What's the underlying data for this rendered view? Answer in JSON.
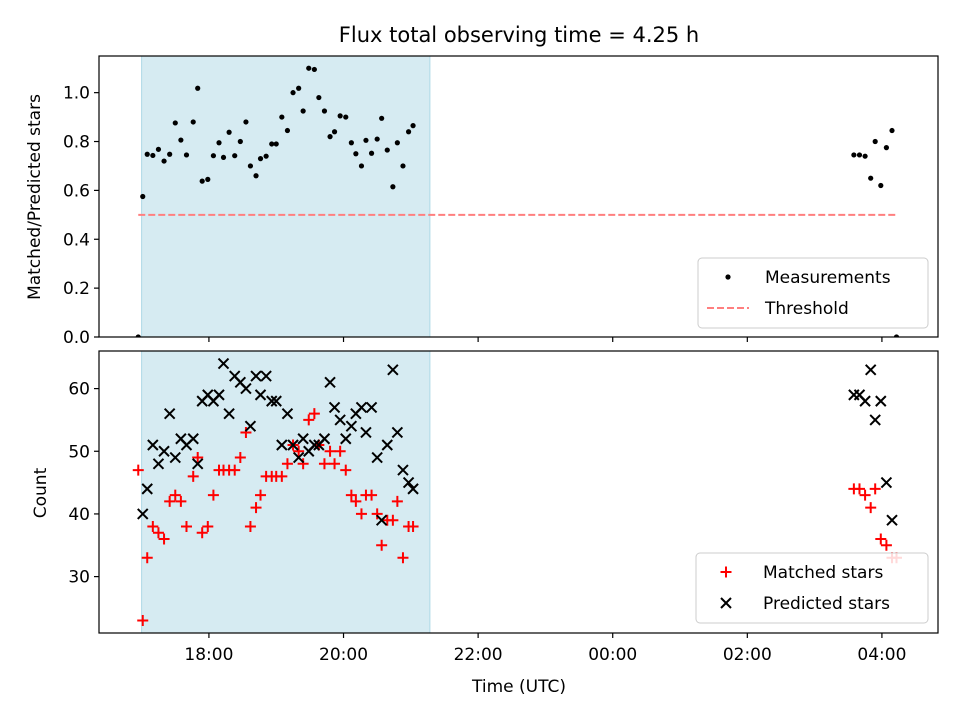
{
  "figure": {
    "title": "Flux total observing time = 4.25 h"
  },
  "colors": {
    "span": "#add8e6",
    "threshold": "#ff7f7f",
    "measurement": "#000000",
    "matched": "#ff0000",
    "predicted": "#000000"
  },
  "chart_data": [
    {
      "type": "scatter",
      "title": "Flux total observing time = 4.25 h",
      "xlabel": "",
      "ylabel": "Matched/Predicted stars",
      "xlim": [
        "2000-01-01T16:22",
        "2000-01-02T04:50"
      ],
      "ylim": [
        0,
        1.15
      ],
      "yticks": [
        "0.0",
        "0.2",
        "0.4",
        "0.6",
        "0.8",
        "1.0"
      ],
      "xticks": [],
      "grid": false,
      "legend": "lower-right",
      "shaded_span": [
        "2000-01-01T17:00",
        "2000-01-01T21:17"
      ],
      "series": [
        {
          "name": "Measurements",
          "marker": "dot",
          "points": [
            [
              "2000-01-01T16:57",
              0.0
            ],
            [
              "2000-01-01T17:01",
              0.575
            ],
            [
              "2000-01-01T17:05",
              0.748
            ],
            [
              "2000-01-01T17:10",
              0.743
            ],
            [
              "2000-01-01T17:15",
              0.768
            ],
            [
              "2000-01-01T17:20",
              0.72
            ],
            [
              "2000-01-01T17:25",
              0.748
            ],
            [
              "2000-01-01T17:30",
              0.876
            ],
            [
              "2000-01-01T17:35",
              0.806
            ],
            [
              "2000-01-01T17:40",
              0.745
            ],
            [
              "2000-01-01T17:46",
              0.88
            ],
            [
              "2000-01-01T17:50",
              1.018
            ],
            [
              "2000-01-01T17:54",
              0.638
            ],
            [
              "2000-01-01T17:59",
              0.645
            ],
            [
              "2000-01-01T18:04",
              0.742
            ],
            [
              "2000-01-01T18:09",
              0.795
            ],
            [
              "2000-01-01T18:13",
              0.735
            ],
            [
              "2000-01-01T18:18",
              0.838
            ],
            [
              "2000-01-01T18:23",
              0.742
            ],
            [
              "2000-01-01T18:28",
              0.8
            ],
            [
              "2000-01-01T18:33",
              0.88
            ],
            [
              "2000-01-01T18:37",
              0.7
            ],
            [
              "2000-01-01T18:42",
              0.66
            ],
            [
              "2000-01-01T18:46",
              0.73
            ],
            [
              "2000-01-01T18:51",
              0.74
            ],
            [
              "2000-01-01T18:56",
              0.79
            ],
            [
              "2000-01-01T19:00",
              0.79
            ],
            [
              "2000-01-01T19:05",
              0.9
            ],
            [
              "2000-01-01T19:10",
              0.845
            ],
            [
              "2000-01-01T19:15",
              1.0
            ],
            [
              "2000-01-01T19:20",
              1.018
            ],
            [
              "2000-01-01T19:24",
              0.925
            ],
            [
              "2000-01-01T19:29",
              1.1
            ],
            [
              "2000-01-01T19:34",
              1.095
            ],
            [
              "2000-01-01T19:38",
              0.98
            ],
            [
              "2000-01-01T19:43",
              0.925
            ],
            [
              "2000-01-01T19:48",
              0.82
            ],
            [
              "2000-01-01T19:52",
              0.84
            ],
            [
              "2000-01-01T19:57",
              0.905
            ],
            [
              "2000-01-01T20:02",
              0.9
            ],
            [
              "2000-01-01T20:07",
              0.795
            ],
            [
              "2000-01-01T20:11",
              0.75
            ],
            [
              "2000-01-01T20:16",
              0.7
            ],
            [
              "2000-01-01T20:20",
              0.805
            ],
            [
              "2000-01-01T20:25",
              0.752
            ],
            [
              "2000-01-01T20:30",
              0.81
            ],
            [
              "2000-01-01T20:34",
              0.895
            ],
            [
              "2000-01-01T20:39",
              0.765
            ],
            [
              "2000-01-01T20:44",
              0.615
            ],
            [
              "2000-01-01T20:48",
              0.795
            ],
            [
              "2000-01-01T20:53",
              0.7
            ],
            [
              "2000-01-01T20:58",
              0.84
            ],
            [
              "2000-01-01T21:02",
              0.865
            ],
            [
              "2000-01-02T03:35",
              0.745
            ],
            [
              "2000-01-02T03:40",
              0.745
            ],
            [
              "2000-01-02T03:45",
              0.74
            ],
            [
              "2000-01-02T03:50",
              0.65
            ],
            [
              "2000-01-02T03:54",
              0.8
            ],
            [
              "2000-01-02T03:59",
              0.62
            ],
            [
              "2000-01-02T04:04",
              0.775
            ],
            [
              "2000-01-02T04:09",
              0.845
            ],
            [
              "2000-01-02T04:13",
              0.0
            ]
          ]
        },
        {
          "name": "Threshold",
          "marker": "dashed-line",
          "points": [
            [
              "2000-01-01T16:57",
              0.5
            ],
            [
              "2000-01-02T04:13",
              0.5
            ]
          ]
        }
      ]
    },
    {
      "type": "scatter",
      "title": "",
      "xlabel": "Time (UTC)",
      "ylabel": "Count",
      "xlim": [
        "2000-01-01T16:22",
        "2000-01-02T04:50"
      ],
      "ylim": [
        21,
        66
      ],
      "yticks": [
        "30",
        "40",
        "50",
        "60"
      ],
      "xticks": [
        "18:00",
        "20:00",
        "22:00",
        "00:00",
        "02:00",
        "04:00"
      ],
      "grid": false,
      "legend": "lower-right",
      "shaded_span": [
        "2000-01-01T17:00",
        "2000-01-01T21:17"
      ],
      "series": [
        {
          "name": "Matched stars",
          "marker": "plus",
          "points": [
            [
              "2000-01-01T16:57",
              47
            ],
            [
              "2000-01-01T17:01",
              23
            ],
            [
              "2000-01-01T17:05",
              33
            ],
            [
              "2000-01-01T17:10",
              38
            ],
            [
              "2000-01-01T17:15",
              37
            ],
            [
              "2000-01-01T17:20",
              36
            ],
            [
              "2000-01-01T17:25",
              42
            ],
            [
              "2000-01-01T17:30",
              43
            ],
            [
              "2000-01-01T17:35",
              42
            ],
            [
              "2000-01-01T17:40",
              38
            ],
            [
              "2000-01-01T17:46",
              46
            ],
            [
              "2000-01-01T17:50",
              49
            ],
            [
              "2000-01-01T17:54",
              37
            ],
            [
              "2000-01-01T17:59",
              38
            ],
            [
              "2000-01-01T18:04",
              43
            ],
            [
              "2000-01-01T18:09",
              47
            ],
            [
              "2000-01-01T18:13",
              47
            ],
            [
              "2000-01-01T18:18",
              47
            ],
            [
              "2000-01-01T18:23",
              47
            ],
            [
              "2000-01-01T18:28",
              49
            ],
            [
              "2000-01-01T18:33",
              53
            ],
            [
              "2000-01-01T18:37",
              38
            ],
            [
              "2000-01-01T18:42",
              41
            ],
            [
              "2000-01-01T18:46",
              43
            ],
            [
              "2000-01-01T18:51",
              46
            ],
            [
              "2000-01-01T18:56",
              46
            ],
            [
              "2000-01-01T19:00",
              46
            ],
            [
              "2000-01-01T19:05",
              46
            ],
            [
              "2000-01-01T19:10",
              48
            ],
            [
              "2000-01-01T19:15",
              51
            ],
            [
              "2000-01-01T19:20",
              50
            ],
            [
              "2000-01-01T19:24",
              48
            ],
            [
              "2000-01-01T19:29",
              55
            ],
            [
              "2000-01-01T19:34",
              56
            ],
            [
              "2000-01-01T19:38",
              51
            ],
            [
              "2000-01-01T19:43",
              48
            ],
            [
              "2000-01-01T19:48",
              50
            ],
            [
              "2000-01-01T19:52",
              48
            ],
            [
              "2000-01-01T19:57",
              50
            ],
            [
              "2000-01-01T20:02",
              47
            ],
            [
              "2000-01-01T20:07",
              43
            ],
            [
              "2000-01-01T20:11",
              42
            ],
            [
              "2000-01-01T20:16",
              40
            ],
            [
              "2000-01-01T20:20",
              43
            ],
            [
              "2000-01-01T20:25",
              43
            ],
            [
              "2000-01-01T20:30",
              40
            ],
            [
              "2000-01-01T20:34",
              35
            ],
            [
              "2000-01-01T20:39",
              39
            ],
            [
              "2000-01-01T20:44",
              39
            ],
            [
              "2000-01-01T20:48",
              42
            ],
            [
              "2000-01-01T20:53",
              33
            ],
            [
              "2000-01-01T20:58",
              38
            ],
            [
              "2000-01-01T21:02",
              38
            ],
            [
              "2000-01-02T03:35",
              44
            ],
            [
              "2000-01-02T03:40",
              44
            ],
            [
              "2000-01-02T03:45",
              43
            ],
            [
              "2000-01-02T03:50",
              41
            ],
            [
              "2000-01-02T03:54",
              44
            ],
            [
              "2000-01-02T03:59",
              36
            ],
            [
              "2000-01-02T04:04",
              35
            ],
            [
              "2000-01-02T04:09",
              33
            ],
            [
              "2000-01-02T04:13",
              33
            ]
          ]
        },
        {
          "name": "Predicted stars",
          "marker": "x",
          "points": [
            [
              "2000-01-01T17:01",
              40
            ],
            [
              "2000-01-01T17:05",
              44
            ],
            [
              "2000-01-01T17:10",
              51
            ],
            [
              "2000-01-01T17:15",
              48
            ],
            [
              "2000-01-01T17:20",
              50
            ],
            [
              "2000-01-01T17:25",
              56
            ],
            [
              "2000-01-01T17:30",
              49
            ],
            [
              "2000-01-01T17:35",
              52
            ],
            [
              "2000-01-01T17:40",
              51
            ],
            [
              "2000-01-01T17:46",
              52
            ],
            [
              "2000-01-01T17:50",
              48
            ],
            [
              "2000-01-01T17:54",
              58
            ],
            [
              "2000-01-01T17:59",
              59
            ],
            [
              "2000-01-01T18:04",
              58
            ],
            [
              "2000-01-01T18:09",
              59
            ],
            [
              "2000-01-01T18:13",
              64
            ],
            [
              "2000-01-01T18:18",
              56
            ],
            [
              "2000-01-01T18:23",
              62
            ],
            [
              "2000-01-01T18:28",
              61
            ],
            [
              "2000-01-01T18:33",
              60
            ],
            [
              "2000-01-01T18:37",
              54
            ],
            [
              "2000-01-01T18:42",
              62
            ],
            [
              "2000-01-01T18:46",
              59
            ],
            [
              "2000-01-01T18:51",
              62
            ],
            [
              "2000-01-01T18:56",
              58
            ],
            [
              "2000-01-01T19:00",
              58
            ],
            [
              "2000-01-01T19:05",
              51
            ],
            [
              "2000-01-01T19:10",
              56
            ],
            [
              "2000-01-01T19:15",
              51
            ],
            [
              "2000-01-01T19:20",
              49
            ],
            [
              "2000-01-01T19:24",
              52
            ],
            [
              "2000-01-01T19:29",
              50
            ],
            [
              "2000-01-01T19:34",
              51
            ],
            [
              "2000-01-01T19:38",
              51
            ],
            [
              "2000-01-01T19:43",
              52
            ],
            [
              "2000-01-01T19:48",
              61
            ],
            [
              "2000-01-01T19:52",
              57
            ],
            [
              "2000-01-01T19:57",
              55
            ],
            [
              "2000-01-01T20:02",
              52
            ],
            [
              "2000-01-01T20:07",
              54
            ],
            [
              "2000-01-01T20:11",
              56
            ],
            [
              "2000-01-01T20:16",
              57
            ],
            [
              "2000-01-01T20:20",
              53
            ],
            [
              "2000-01-01T20:25",
              57
            ],
            [
              "2000-01-01T20:30",
              49
            ],
            [
              "2000-01-01T20:34",
              39
            ],
            [
              "2000-01-01T20:39",
              51
            ],
            [
              "2000-01-01T20:44",
              63
            ],
            [
              "2000-01-01T20:48",
              53
            ],
            [
              "2000-01-01T20:53",
              47
            ],
            [
              "2000-01-01T20:58",
              45
            ],
            [
              "2000-01-01T21:02",
              44
            ],
            [
              "2000-01-02T03:35",
              59
            ],
            [
              "2000-01-02T03:40",
              59
            ],
            [
              "2000-01-02T03:45",
              58
            ],
            [
              "2000-01-02T03:50",
              63
            ],
            [
              "2000-01-02T03:54",
              55
            ],
            [
              "2000-01-02T03:59",
              58
            ],
            [
              "2000-01-02T04:04",
              45
            ],
            [
              "2000-01-02T04:09",
              39
            ]
          ]
        }
      ]
    }
  ]
}
